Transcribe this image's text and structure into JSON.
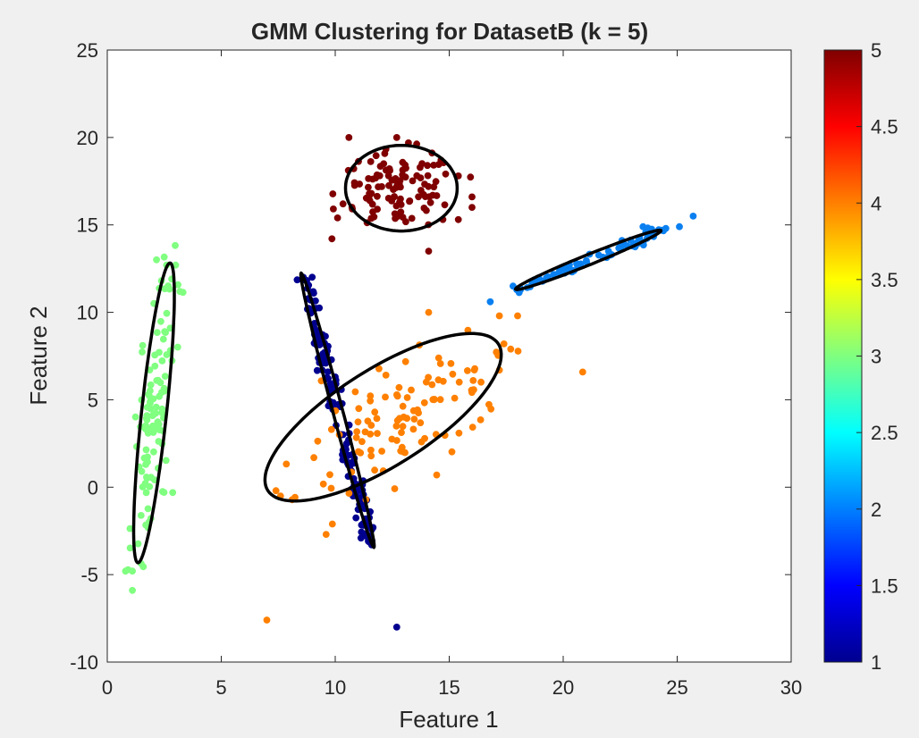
{
  "chart_data": {
    "type": "scatter",
    "title": "GMM Clustering for DatasetB (k = 5)",
    "xlabel": "Feature 1",
    "ylabel": "Feature 2",
    "xlim": [
      0,
      30
    ],
    "ylim": [
      -10,
      25
    ],
    "xticks": [
      "0",
      "5",
      "10",
      "15",
      "20",
      "25",
      "30"
    ],
    "yticks": [
      "-10",
      "-5",
      "0",
      "5",
      "10",
      "15",
      "20",
      "25"
    ],
    "colormap": "jet",
    "colorbar": {
      "range": [
        1,
        5
      ],
      "ticks": [
        "1",
        "1.5",
        "2",
        "2.5",
        "3",
        "3.5",
        "4",
        "4.5",
        "5"
      ],
      "placement": "right"
    },
    "grid": false,
    "series": [
      {
        "cluster": 1,
        "color": "#00008f",
        "approx_points": 150,
        "line_start": [
          8.6,
          12.0
        ],
        "line_end": [
          11.6,
          -3.2
        ],
        "scatter_width": 0.18,
        "extra_points": [
          [
            8.6,
            12.0
          ],
          [
            11.6,
            -3.3
          ],
          [
            12.7,
            -8.0
          ]
        ]
      },
      {
        "cluster": 2,
        "color": "#0a80f0",
        "approx_points": 70,
        "line_start": [
          17.9,
          11.3
        ],
        "line_end": [
          24.4,
          14.7
        ],
        "scatter_width": 0.15,
        "extra_points": [
          [
            16.8,
            10.6
          ],
          [
            25.7,
            15.5
          ],
          [
            25.1,
            14.9
          ],
          [
            24.5,
            14.8
          ],
          [
            23.5,
            14.9
          ],
          [
            17.8,
            11.5
          ]
        ]
      },
      {
        "cluster": 3,
        "color": "#80ff80",
        "approx_points": 110,
        "mean": [
          2.05,
          4.2
        ],
        "sd_major": 4.3,
        "sd_minor": 0.35,
        "angle_deg": 85.3,
        "extra_points": [
          [
            0.8,
            -4.8
          ],
          [
            1.1,
            -4.8
          ],
          [
            1.1,
            -5.9
          ],
          [
            3.0,
            12.7
          ],
          [
            2.6,
            12.7
          ]
        ]
      },
      {
        "cluster": 4,
        "color": "#ff8000",
        "approx_points": 110,
        "mean": [
          13.2,
          4.0
        ],
        "sd_major": 3.3,
        "sd_minor": 1.25,
        "angle_deg": 42,
        "extra_points": [
          [
            7.0,
            -7.6
          ],
          [
            7.6,
            -0.5
          ],
          [
            7.4,
            -0.2
          ],
          [
            9.6,
            -2.7
          ],
          [
            17.2,
            9.8
          ],
          [
            18.0,
            9.8
          ],
          [
            17.7,
            7.9
          ],
          [
            17.2,
            6.7
          ],
          [
            14.1,
            10.0
          ]
        ]
      },
      {
        "cluster": 5,
        "color": "#800000",
        "approx_points": 110,
        "mean": [
          12.8,
          17.0
        ],
        "sd_major": 1.3,
        "sd_minor": 1.1,
        "angle_deg": 0,
        "extra_points": [
          [
            14.1,
            13.5
          ],
          [
            15.4,
            15.3
          ],
          [
            15.4,
            17.8
          ],
          [
            16.0,
            16.6
          ],
          [
            16.0,
            16.0
          ],
          [
            10.6,
            20.0
          ],
          [
            12.7,
            20.0
          ],
          [
            10.1,
            15.4
          ]
        ]
      }
    ],
    "ellipses": [
      {
        "cluster": 1,
        "center": [
          10.1,
          4.4
        ],
        "semi_major": 8.0,
        "semi_minor": 0.22,
        "angle_deg": -78.5
      },
      {
        "cluster": 2,
        "center": [
          21.1,
          13.0
        ],
        "semi_major": 3.6,
        "semi_minor": 0.28,
        "angle_deg": 27.8
      },
      {
        "cluster": 3,
        "center": [
          2.05,
          4.25
        ],
        "semi_major": 8.6,
        "semi_minor": 0.55,
        "angle_deg": 85.3
      },
      {
        "cluster": 4,
        "center": [
          12.1,
          4.0
        ],
        "semi_major": 6.6,
        "semi_minor": 2.5,
        "angle_deg": 42
      },
      {
        "cluster": 5,
        "center": [
          12.9,
          17.1
        ],
        "semi_major": 2.45,
        "semi_minor": 2.45,
        "angle_deg": 0
      }
    ]
  }
}
